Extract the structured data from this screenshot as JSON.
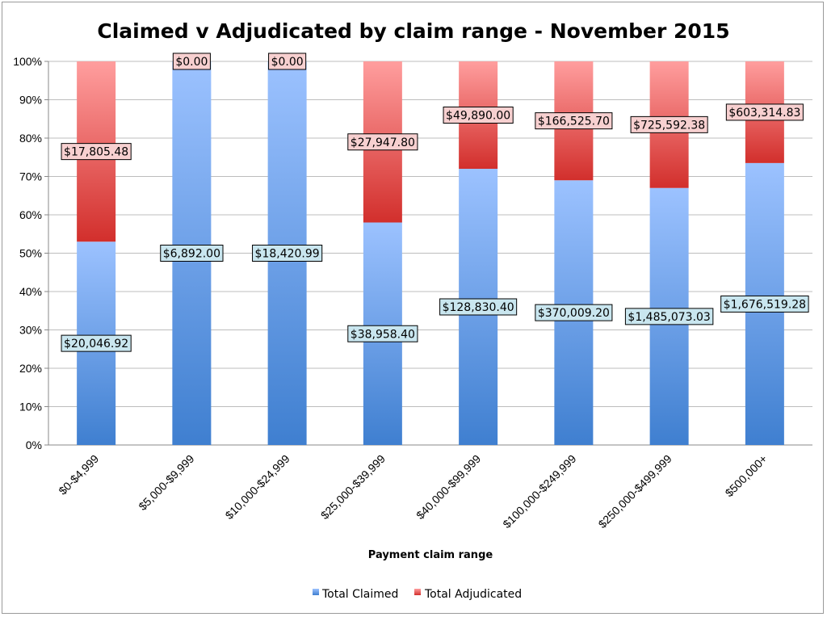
{
  "chart_data": {
    "type": "bar",
    "stacked": "percent",
    "title": "Claimed v Adjudicated by claim range - November 2015",
    "xlabel": "Payment claim range",
    "ylabel": "",
    "ylim": [
      0,
      100
    ],
    "y_ticks": [
      "0%",
      "10%",
      "20%",
      "30%",
      "40%",
      "50%",
      "60%",
      "70%",
      "80%",
      "90%",
      "100%"
    ],
    "categories": [
      "$0-$4,999",
      "$5,000-$9,999",
      "$10,000-$24,999",
      "$25,000-$39,999",
      "$40,000-$99,999",
      "$100,000-$249,999",
      "$250,000-$499,999",
      "$500,000+"
    ],
    "grid": true,
    "legend_position": "bottom",
    "series": [
      {
        "name": "Total Claimed",
        "color": "#5b92d8",
        "values": [
          20046.92,
          6892.0,
          18420.99,
          38958.4,
          128830.4,
          370009.2,
          1485073.03,
          1676519.28
        ],
        "labels": [
          "$20,046.92",
          "$6,892.00",
          "$18,420.99",
          "$38,958.40",
          "$128,830.40",
          "$370,009.20",
          "$1,485,073.03",
          "$1,676,519.28"
        ],
        "percent": [
          53,
          100,
          100,
          58,
          72,
          69,
          67,
          73.5
        ]
      },
      {
        "name": "Total Adjudicated",
        "color": "#d04444",
        "values": [
          17805.48,
          0.0,
          0.0,
          27947.8,
          49890.0,
          166525.7,
          725592.38,
          603314.83
        ],
        "labels": [
          "$17,805.48",
          "$0.00",
          "$0.00",
          "$27,947.80",
          "$49,890.00",
          "$166,525.70",
          "$725,592.38",
          "$603,314.83"
        ],
        "percent": [
          47,
          0,
          0,
          42,
          28,
          31,
          33,
          26.5
        ]
      }
    ]
  }
}
